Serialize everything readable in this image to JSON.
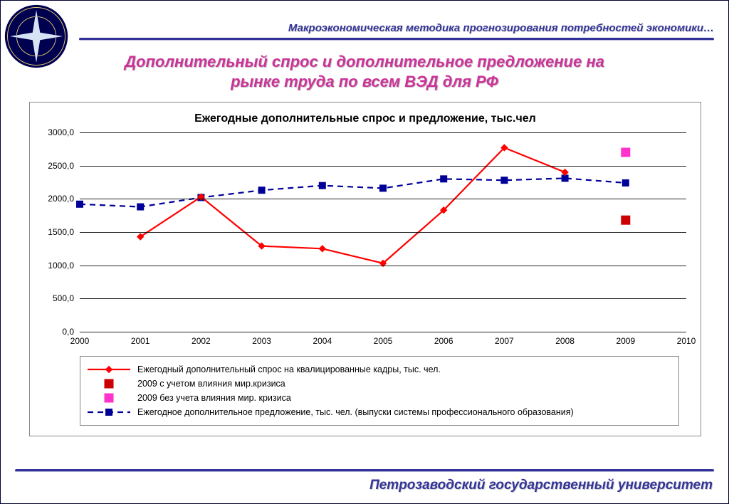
{
  "header": "Макроэкономическая методика прогнозирования потребностей экономики…",
  "footer": "Петрозаводский государственный университет",
  "main_title_line1": "Дополнительный спрос и дополнительное предложение на",
  "main_title_line2": "рынке труда по всем ВЭД для РФ",
  "logo": {
    "outer_color": "#000050",
    "ring_color": "#e8d070",
    "star_fill": "#d6e3f5",
    "star_stroke": "#000050"
  },
  "chart": {
    "type": "line",
    "title": "Ежегодные дополнительные спрос и предложение, тыс.чел",
    "background_color": "#ffffff",
    "grid_color": "#000000",
    "title_fontsize": 16,
    "label_fontsize": 12,
    "x_values": [
      2000,
      2001,
      2002,
      2003,
      2004,
      2005,
      2006,
      2007,
      2008,
      2009,
      2010
    ],
    "xlim": [
      2000,
      2010
    ],
    "ylim": [
      0,
      3000
    ],
    "ytick_step": 500,
    "y_ticks": [
      "0,0",
      "500,0",
      "1000,0",
      "1500,0",
      "2000,0",
      "2500,0",
      "3000,0"
    ],
    "series": {
      "demand": {
        "label": "Ежегодный дополнительный спрос на квалицированные кадры, тыс. чел.",
        "color": "#ff0000",
        "marker": "diamond",
        "marker_size": 9,
        "line_width": 2.2,
        "dash": "none",
        "points": [
          {
            "x": 2001,
            "y": 1430
          },
          {
            "x": 2002,
            "y": 2030
          },
          {
            "x": 2003,
            "y": 1290
          },
          {
            "x": 2004,
            "y": 1250
          },
          {
            "x": 2005,
            "y": 1030
          },
          {
            "x": 2006,
            "y": 1830
          },
          {
            "x": 2007,
            "y": 2770
          },
          {
            "x": 2008,
            "y": 2400
          }
        ]
      },
      "supply": {
        "label": "Ежегодное дополнительное предложение, тыс. чел. (выпуски системы профессионального образования)",
        "color": "#000099",
        "marker": "square",
        "marker_size": 9,
        "line_width": 2.2,
        "dash": "8,6",
        "points": [
          {
            "x": 2000,
            "y": 1920
          },
          {
            "x": 2001,
            "y": 1880
          },
          {
            "x": 2002,
            "y": 2020
          },
          {
            "x": 2003,
            "y": 2130
          },
          {
            "x": 2004,
            "y": 2200
          },
          {
            "x": 2005,
            "y": 2160
          },
          {
            "x": 2006,
            "y": 2300
          },
          {
            "x": 2007,
            "y": 2280
          },
          {
            "x": 2008,
            "y": 2310
          },
          {
            "x": 2009,
            "y": 2240
          }
        ]
      },
      "crisis_with": {
        "label": "2009 с учетом влияния мир.кризиса",
        "color": "#cc0000",
        "marker": "square",
        "marker_size": 12,
        "points": [
          {
            "x": 2009,
            "y": 1680
          }
        ]
      },
      "crisis_without": {
        "label": "2009 без учета влияния мир. кризиса",
        "color": "#ff33cc",
        "marker": "square",
        "marker_size": 12,
        "points": [
          {
            "x": 2009,
            "y": 2700
          }
        ]
      }
    },
    "legend_order": [
      "demand",
      "crisis_with",
      "crisis_without",
      "supply"
    ]
  }
}
